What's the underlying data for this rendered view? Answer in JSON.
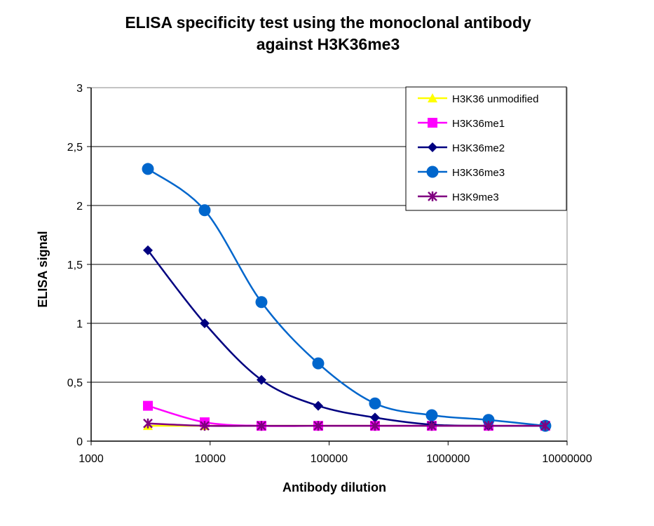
{
  "chart_data": {
    "type": "line",
    "title_lines": [
      "ELISA  specificity test using the monoclonal antibody",
      "against H3K36me3"
    ],
    "xlabel": "Antibody dilution",
    "ylabel": "ELISA signal",
    "xscale": "log",
    "xlim": [
      1000,
      10000000
    ],
    "ylim": [
      0,
      3
    ],
    "xticks": [
      "1000",
      "10000",
      "100000",
      "1000000",
      "10000000"
    ],
    "xtick_values": [
      1000,
      10000,
      100000,
      1000000,
      10000000
    ],
    "yticks": [
      "0",
      "0,5",
      "1",
      "1,5",
      "2",
      "2,5",
      "3"
    ],
    "ytick_values": [
      0,
      0.5,
      1,
      1.5,
      2,
      2.5,
      3
    ],
    "grid": "horizontal",
    "legend_position": "top-right",
    "x": [
      3000,
      9000,
      27000,
      81000,
      243000,
      729000,
      2187000,
      6561000
    ],
    "series": [
      {
        "name": "H3K36 unmodified",
        "color": "#FFFF00",
        "marker": "triangle",
        "values": [
          0.13,
          0.13,
          0.13,
          0.13,
          0.13,
          0.13,
          0.13,
          0.13
        ]
      },
      {
        "name": "H3K36me1",
        "color": "#FF00FF",
        "marker": "square",
        "values": [
          0.3,
          0.16,
          0.13,
          0.13,
          0.13,
          0.13,
          0.13,
          0.13
        ]
      },
      {
        "name": "H3K36me2",
        "color": "#000080",
        "marker": "diamond",
        "values": [
          1.62,
          1.0,
          0.52,
          0.3,
          0.2,
          0.14,
          0.13,
          0.13
        ]
      },
      {
        "name": "H3K36me3",
        "color": "#0066CC",
        "marker": "circle",
        "values": [
          2.31,
          1.96,
          1.18,
          0.66,
          0.32,
          0.22,
          0.18,
          0.13
        ]
      },
      {
        "name": "H3K9me3",
        "color": "#800080",
        "marker": "star",
        "values": [
          0.15,
          0.13,
          0.13,
          0.13,
          0.13,
          0.13,
          0.13,
          0.13
        ]
      }
    ]
  }
}
